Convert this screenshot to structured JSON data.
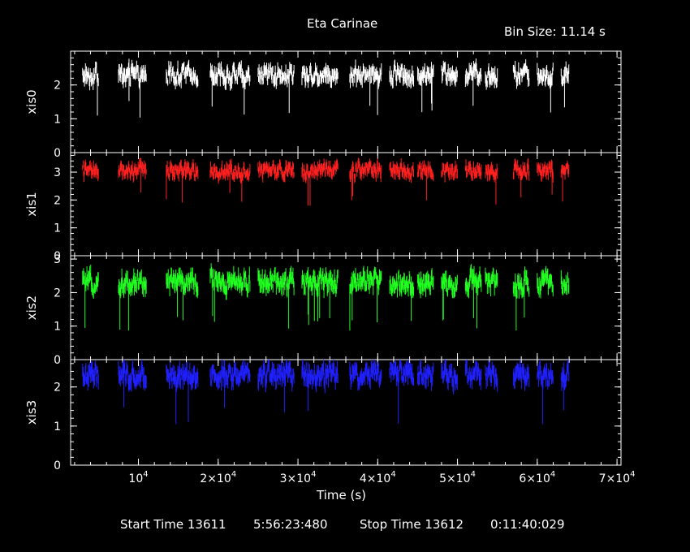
{
  "title": "Eta Carinae",
  "bin_size_text": "Bin Size: 11.14 s",
  "xlabel": "Time (s)",
  "footer": {
    "start_label": "Start Time 13611",
    "start_time": "5:56:23:480",
    "stop_label": "Stop Time 13612",
    "stop_time": "0:11:40:029"
  },
  "chart_data": [
    {
      "type": "line",
      "ylabel": "xis0",
      "color": "#ffffff",
      "ylim": [
        0,
        3
      ],
      "yticks": [
        0,
        1,
        2
      ],
      "xlim": [
        1500,
        70500
      ],
      "xticks": [
        10000,
        20000,
        30000,
        40000,
        50000,
        60000,
        70000
      ],
      "segments": [
        [
          3000,
          5000
        ],
        [
          7500,
          11000
        ],
        [
          13500,
          17500
        ],
        [
          19000,
          24000
        ],
        [
          25000,
          29500
        ],
        [
          30500,
          35000
        ],
        [
          36500,
          40500
        ],
        [
          41500,
          44500
        ],
        [
          45000,
          47000
        ],
        [
          48000,
          50000
        ],
        [
          51000,
          53000
        ],
        [
          53500,
          55000
        ],
        [
          57000,
          59000
        ],
        [
          60000,
          62000
        ],
        [
          63000,
          64000
        ]
      ],
      "mean": 2.3,
      "spread": 0.35
    },
    {
      "type": "line",
      "ylabel": "xis1",
      "color": "#ff2020",
      "ylim": [
        0,
        3.7
      ],
      "yticks": [
        0,
        1,
        2,
        3
      ],
      "xlim": [
        1500,
        70500
      ],
      "xticks": [
        10000,
        20000,
        30000,
        40000,
        50000,
        60000,
        70000
      ],
      "segments": [
        [
          3000,
          5000
        ],
        [
          7500,
          11000
        ],
        [
          13500,
          17500
        ],
        [
          19000,
          24000
        ],
        [
          25000,
          29500
        ],
        [
          30500,
          35000
        ],
        [
          36500,
          40500
        ],
        [
          41500,
          44500
        ],
        [
          45000,
          47000
        ],
        [
          48000,
          50000
        ],
        [
          51000,
          53000
        ],
        [
          53500,
          55000
        ],
        [
          57000,
          59000
        ],
        [
          60000,
          62000
        ],
        [
          63000,
          64000
        ]
      ],
      "mean": 3.05,
      "spread": 0.35
    },
    {
      "type": "line",
      "ylabel": "xis2",
      "color": "#20ff20",
      "ylim": [
        0,
        3.1
      ],
      "yticks": [
        0,
        1,
        2,
        3
      ],
      "xlim": [
        1500,
        70500
      ],
      "xticks": [
        10000,
        20000,
        30000,
        40000,
        50000,
        60000,
        70000
      ],
      "segments": [
        [
          3000,
          5000
        ],
        [
          7500,
          11000
        ],
        [
          13500,
          17500
        ],
        [
          19000,
          24000
        ],
        [
          25000,
          29500
        ],
        [
          30500,
          35000
        ],
        [
          36500,
          40500
        ],
        [
          41500,
          44500
        ],
        [
          45000,
          47000
        ],
        [
          48000,
          50000
        ],
        [
          51000,
          53000
        ],
        [
          53500,
          55000
        ],
        [
          57000,
          59000
        ],
        [
          60000,
          62000
        ],
        [
          63000,
          64000
        ]
      ],
      "mean": 2.3,
      "spread": 0.4
    },
    {
      "type": "line",
      "ylabel": "xis3",
      "color": "#2020ff",
      "ylim": [
        0,
        2.7
      ],
      "yticks": [
        0,
        1,
        2
      ],
      "xlim": [
        1500,
        70500
      ],
      "xticks": [
        10000,
        20000,
        30000,
        40000,
        50000,
        60000,
        70000
      ],
      "segments": [
        [
          3000,
          5000
        ],
        [
          7500,
          11000
        ],
        [
          13500,
          17500
        ],
        [
          19000,
          24000
        ],
        [
          25000,
          29500
        ],
        [
          30500,
          35000
        ],
        [
          36500,
          40500
        ],
        [
          41500,
          44500
        ],
        [
          45000,
          47000
        ],
        [
          48000,
          50000
        ],
        [
          51000,
          53000
        ],
        [
          53500,
          55000
        ],
        [
          57000,
          59000
        ],
        [
          60000,
          62000
        ],
        [
          63000,
          64000
        ]
      ],
      "mean": 2.3,
      "spread": 0.35
    }
  ],
  "xtick_labels": [
    {
      "base": "10",
      "exp": "4"
    },
    {
      "base": "2×10",
      "exp": "4"
    },
    {
      "base": "3×10",
      "exp": "4"
    },
    {
      "base": "4×10",
      "exp": "4"
    },
    {
      "base": "5×10",
      "exp": "4"
    },
    {
      "base": "6×10",
      "exp": "4"
    },
    {
      "base": "7×10",
      "exp": "4"
    }
  ]
}
